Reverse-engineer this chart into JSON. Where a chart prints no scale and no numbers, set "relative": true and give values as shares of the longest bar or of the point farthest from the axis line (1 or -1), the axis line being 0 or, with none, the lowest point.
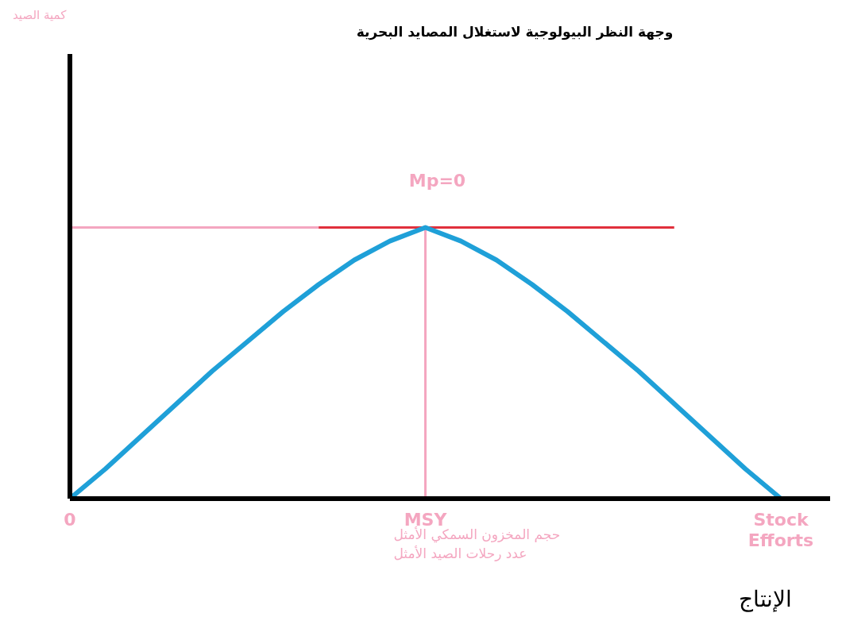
{
  "chart_data": {
    "type": "line",
    "title": "وجهة النظر البيولوجية لاستغلال المصايد البحرية",
    "relative": true,
    "marker": "none",
    "categories": [
      "0",
      null,
      null,
      null,
      null,
      null,
      null,
      null,
      null,
      null,
      "MSY",
      null,
      null,
      null,
      null,
      null,
      null,
      null,
      null,
      null,
      "Stock Efforts"
    ],
    "series": [
      {
        "color": "#1fa0d8",
        "values": [
          0,
          0.11,
          0.23,
          0.35,
          0.47,
          0.58,
          0.69,
          0.79,
          0.88,
          0.95,
          1,
          0.95,
          0.88,
          0.79,
          0.69,
          0.58,
          0.47,
          0.35,
          0.23,
          0.11,
          0
        ]
      }
    ],
    "ref_lines": [
      {
        "axis": "y",
        "value": 1,
        "color": "#f4a6c0"
      },
      {
        "axis": "y",
        "value": 1,
        "color": "#e0303c"
      },
      {
        "axis": "x",
        "value": "MSY",
        "color": "#f4a6c0"
      }
    ],
    "annotations": [
      {
        "text": "Mp=0",
        "x": "MSY",
        "y": 1
      },
      "حجم المخزون السمكي الأمثل",
      "عدد رحلات الصيد الأمثل",
      "الإنتاج",
      "كمية الصيد"
    ]
  }
}
